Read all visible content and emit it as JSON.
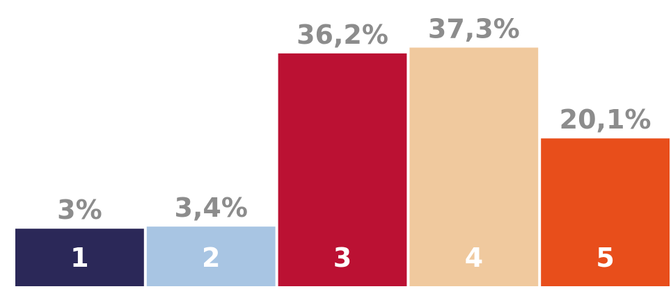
{
  "chart_data": {
    "type": "bar",
    "categories": [
      "1",
      "2",
      "3",
      "4",
      "5"
    ],
    "values": [
      3,
      3.4,
      36.2,
      37.3,
      20.1
    ],
    "value_labels": [
      "3%",
      "3,4%",
      "36,2%",
      "37,3%",
      "20,1%"
    ],
    "colors": [
      "#2b2858",
      "#a8c5e3",
      "#bb1133",
      "#f0c99e",
      "#e84e1b"
    ]
  }
}
